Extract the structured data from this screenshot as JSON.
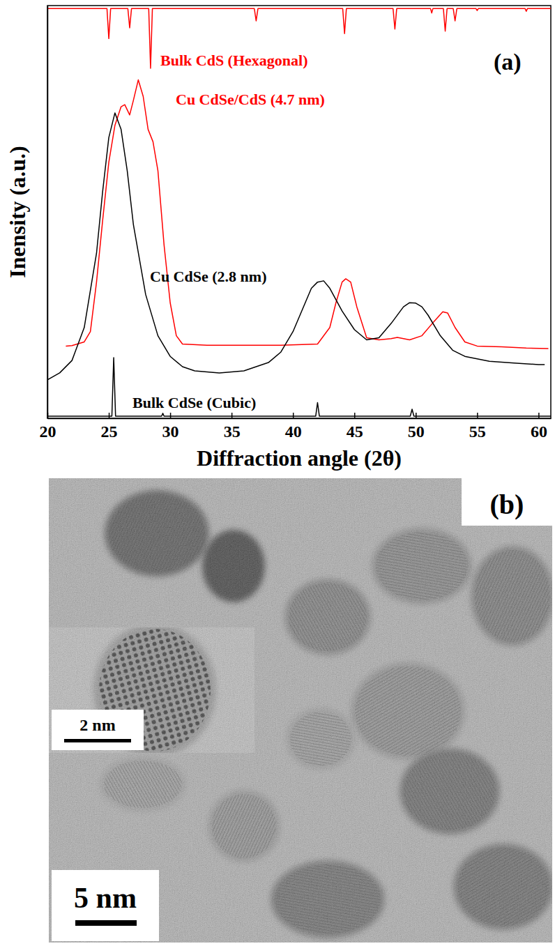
{
  "chart_data": {
    "type": "line",
    "panel_label": "(a)",
    "x_label": "Diffraction angle (2θ)",
    "y_label": "Inensity (a.u.)",
    "xlim": [
      20,
      61
    ],
    "xticks": [
      20,
      25,
      30,
      35,
      40,
      45,
      50,
      55,
      60
    ],
    "ylim": [
      0,
      100
    ],
    "yticks": [],
    "tick_labels": "x",
    "grid": false,
    "series": [
      {
        "name": "Bulk CdS (Hexagonal)",
        "color": "#ff0000",
        "x": [
          20,
          24.85,
          25.0,
          25.15,
          26.55,
          26.7,
          26.85,
          28.25,
          28.4,
          28.55,
          36.85,
          37.0,
          37.15,
          44.05,
          44.2,
          44.35,
          48.15,
          48.3,
          48.45,
          51.2,
          51.3,
          51.4,
          52.25,
          52.4,
          52.55,
          53.05,
          53.2,
          53.35,
          54.9,
          55.0,
          55.1,
          58.9,
          59.0,
          59.1,
          61
        ],
        "values": [
          99.3,
          99.3,
          92,
          99.3,
          99.3,
          94.6,
          99.3,
          99.3,
          84.8,
          99.3,
          99.3,
          96.3,
          99.3,
          99.3,
          93.2,
          99.3,
          99.3,
          94.3,
          99.3,
          99.3,
          98.2,
          99.3,
          99.3,
          93.8,
          99.3,
          99.3,
          96.3,
          99.3,
          99.3,
          98.8,
          99.3,
          99.3,
          98.6,
          99.3,
          99.3
        ]
      },
      {
        "name": "Cu CdSe/CdS (4.7 nm)",
        "color": "#ff0000",
        "x": [
          21.5,
          22,
          23,
          23.5,
          24,
          24.5,
          25,
          25.5,
          26,
          26.3,
          26.7,
          27,
          27.4,
          27.8,
          28.2,
          28.6,
          29,
          29.5,
          30,
          30.5,
          31,
          33,
          36,
          39,
          42,
          43,
          43.5,
          44,
          44.3,
          44.7,
          45.2,
          46,
          47,
          48,
          48.5,
          49.5,
          50.5,
          51.5,
          52.2,
          52.6,
          53.2,
          54,
          55,
          57,
          59,
          60.8
        ],
        "values": [
          17.5,
          17.6,
          18.5,
          21,
          33,
          48,
          62,
          71,
          75.5,
          76,
          73.5,
          77,
          82,
          78,
          70,
          67,
          60,
          42,
          28,
          20,
          18,
          17.7,
          17.7,
          17.7,
          18,
          22,
          28,
          33,
          33.8,
          33,
          27,
          19.5,
          19,
          19.3,
          19.6,
          19,
          20,
          23.5,
          25.8,
          25.5,
          22,
          18.5,
          17.5,
          17.3,
          17,
          16.9
        ]
      },
      {
        "name": "Cu CdSe (2.8 nm)",
        "color": "#000000",
        "x": [
          20,
          21,
          22,
          23,
          24,
          24.5,
          25,
          25.5,
          26,
          26.5,
          27,
          28,
          29,
          30,
          31,
          32,
          34,
          36,
          38,
          39,
          40,
          41,
          41.5,
          42,
          42.5,
          43,
          44,
          45,
          46,
          47,
          48,
          49,
          49.5,
          50,
          50.5,
          51,
          52,
          53,
          54,
          56,
          58,
          60,
          60.5
        ],
        "values": [
          9.3,
          11,
          14,
          22,
          40,
          55,
          68,
          74,
          70,
          60,
          47,
          30,
          20,
          15,
          12.5,
          11.5,
          11,
          11.5,
          13.5,
          16,
          21,
          28,
          31.5,
          33,
          33.3,
          31.5,
          26,
          21.5,
          19,
          19.5,
          23,
          27,
          28,
          27.9,
          27,
          25,
          20,
          16.5,
          15,
          13.8,
          13.4,
          13,
          13
        ]
      },
      {
        "name": "Bulk CdSe (Cubic)",
        "color": "#000000",
        "x": [
          20,
          25.25,
          25.4,
          25.55,
          29.3,
          29.4,
          29.5,
          41.85,
          42.0,
          42.15,
          49.55,
          49.7,
          49.85,
          61
        ],
        "values": [
          0.5,
          0.5,
          14.7,
          0.5,
          0.5,
          1.2,
          0.5,
          0.5,
          3.8,
          0.5,
          0.5,
          2.2,
          0.5,
          0.5
        ]
      }
    ]
  },
  "micrograph": {
    "panel_label": "(b)",
    "scale_bar_label": "5 nm",
    "inset_scale_bar_label": "2 nm"
  }
}
